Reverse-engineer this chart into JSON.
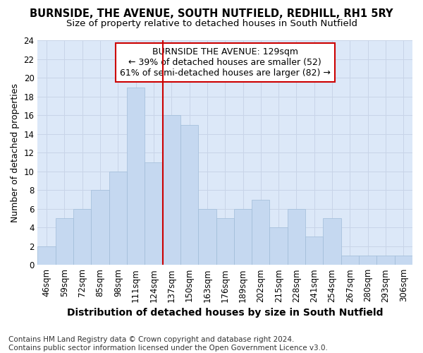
{
  "title": "BURNSIDE, THE AVENUE, SOUTH NUTFIELD, REDHILL, RH1 5RY",
  "subtitle": "Size of property relative to detached houses in South Nutfield",
  "xlabel": "Distribution of detached houses by size in South Nutfield",
  "ylabel": "Number of detached properties",
  "categories": [
    "46sqm",
    "59sqm",
    "72sqm",
    "85sqm",
    "98sqm",
    "111sqm",
    "124sqm",
    "137sqm",
    "150sqm",
    "163sqm",
    "176sqm",
    "189sqm",
    "202sqm",
    "215sqm",
    "228sqm",
    "241sqm",
    "254sqm",
    "267sqm",
    "280sqm",
    "293sqm",
    "306sqm"
  ],
  "values": [
    2,
    5,
    6,
    8,
    10,
    19,
    11,
    16,
    15,
    6,
    5,
    6,
    7,
    4,
    6,
    3,
    5,
    1,
    1,
    1,
    1
  ],
  "bar_color": "#c5d8f0",
  "bar_edge_color": "#a0bcd8",
  "vline_x": 6.5,
  "vline_color": "#cc0000",
  "annotation_text": "BURNSIDE THE AVENUE: 129sqm\n← 39% of detached houses are smaller (52)\n61% of semi-detached houses are larger (82) →",
  "annotation_box_color": "#ffffff",
  "annotation_box_edge": "#cc0000",
  "ylim": [
    0,
    24
  ],
  "yticks": [
    0,
    2,
    4,
    6,
    8,
    10,
    12,
    14,
    16,
    18,
    20,
    22,
    24
  ],
  "grid_color": "#c8d4e8",
  "background_color": "#dce8f8",
  "footer_text": "Contains HM Land Registry data © Crown copyright and database right 2024.\nContains public sector information licensed under the Open Government Licence v3.0.",
  "title_fontsize": 10.5,
  "subtitle_fontsize": 9.5,
  "xlabel_fontsize": 10,
  "ylabel_fontsize": 9,
  "tick_fontsize": 8.5,
  "annotation_fontsize": 9,
  "footer_fontsize": 7.5
}
